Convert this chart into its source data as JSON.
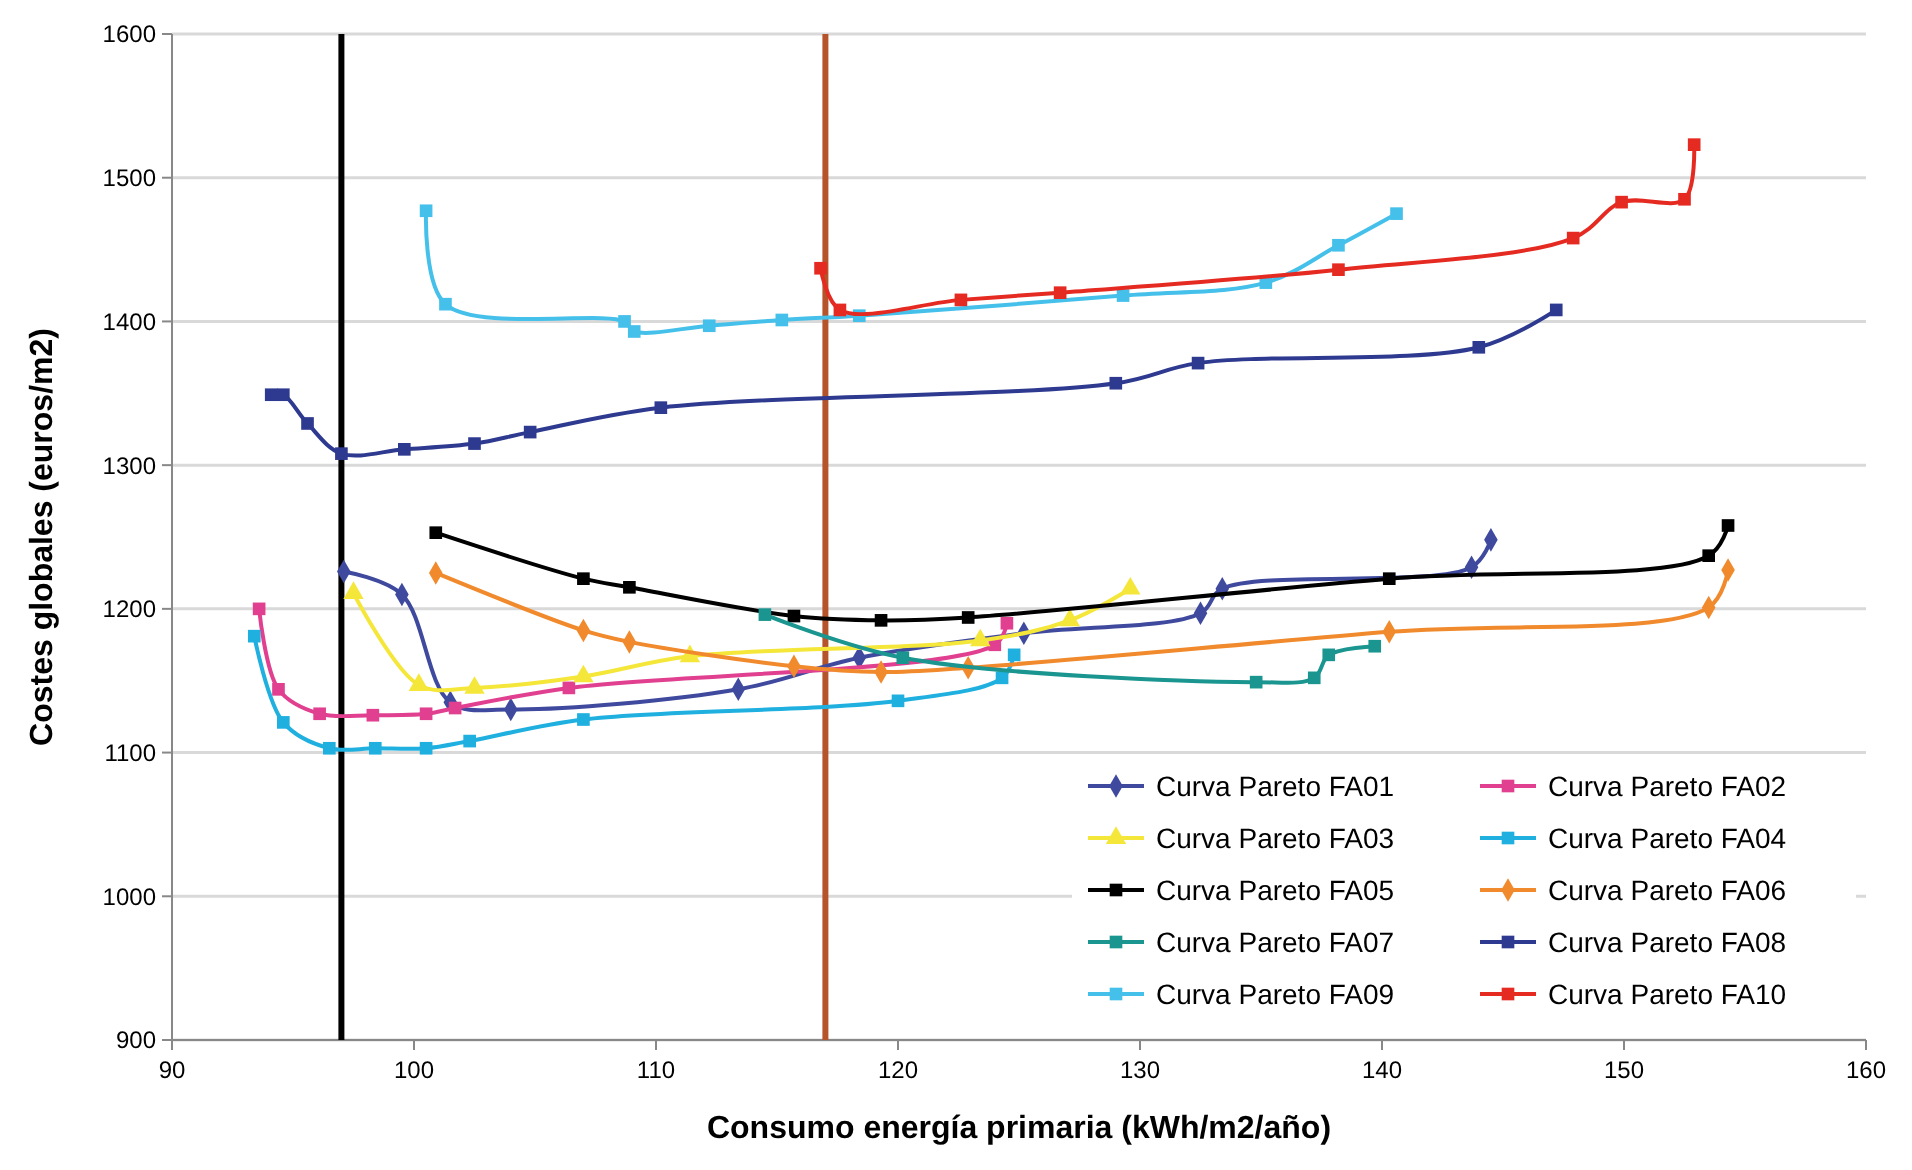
{
  "chart_data": {
    "type": "line",
    "xlabel": "Consumo energía primaria (kWh/m2/año)",
    "ylabel": "Costes globales (euros/m2)",
    "xlim": [
      90,
      160
    ],
    "xticks": [
      90,
      100,
      110,
      120,
      130,
      140,
      150,
      160
    ],
    "ylim": [
      900,
      1600
    ],
    "yticks": [
      900,
      1000,
      1100,
      1200,
      1300,
      1400,
      1500,
      1600
    ],
    "grid": "y",
    "legend": "bottom right",
    "line_style": "solid",
    "ref_lines": [
      {
        "axis": "x",
        "value": 97,
        "label": null,
        "color": "#000000"
      },
      {
        "axis": "x",
        "value": 117,
        "label": null,
        "color": "#b5532a"
      }
    ],
    "series": [
      {
        "name": "Curva Pareto FA01",
        "color": "#3f4a9e",
        "marker": "diamond",
        "x": [
          97.1,
          99.5,
          101.5,
          104,
          113.4,
          118.4,
          125.2,
          132.5,
          133.4,
          143.7,
          144.5
        ],
        "values": [
          1226,
          1210,
          1135,
          1130,
          1144,
          1166,
          1183,
          1197,
          1214,
          1229,
          1248
        ]
      },
      {
        "name": "Curva Pareto FA02",
        "color": "#e0408f",
        "marker": "square",
        "x": [
          93.6,
          94.4,
          96.1,
          98.3,
          100.5,
          101.7,
          106.4,
          124,
          124.5
        ],
        "values": [
          1200,
          1144,
          1127,
          1126,
          1127,
          1131,
          1145,
          1175,
          1190
        ]
      },
      {
        "name": "Curva Pareto FA03",
        "color": "#f5e63a",
        "marker": "triangle",
        "x": [
          97.5,
          100.2,
          102.5,
          107,
          111.4,
          123.4,
          127.1,
          129.6
        ],
        "values": [
          1211,
          1147,
          1145,
          1153,
          1167,
          1178,
          1192,
          1214
        ]
      },
      {
        "name": "Curva Pareto FA04",
        "color": "#1fb0e0",
        "marker": "square",
        "x": [
          93.4,
          94.6,
          96.5,
          98.4,
          100.5,
          102.3,
          107,
          120,
          124.3,
          124.8
        ],
        "values": [
          1181,
          1121,
          1103,
          1103,
          1103,
          1108,
          1123,
          1136,
          1152,
          1168
        ]
      },
      {
        "name": "Curva Pareto FA05",
        "color": "#000000",
        "marker": "square",
        "x": [
          100.9,
          107,
          108.9,
          115.7,
          119.3,
          122.9,
          140.3,
          153.5,
          154.3
        ],
        "values": [
          1253,
          1221,
          1215,
          1195,
          1192,
          1194,
          1221,
          1237,
          1258
        ]
      },
      {
        "name": "Curva Pareto FA06",
        "color": "#f08a2c",
        "marker": "diamond",
        "x": [
          100.9,
          107,
          108.9,
          115.7,
          119.3,
          122.9,
          140.3,
          153.5,
          154.3
        ],
        "values": [
          1225,
          1185,
          1177,
          1160,
          1156,
          1159,
          1184,
          1201,
          1227
        ]
      },
      {
        "name": "Curva Pareto FA07",
        "color": "#1a958f",
        "marker": "square",
        "x": [
          114.5,
          120.2,
          134.8,
          137.2,
          137.8,
          139.7
        ],
        "values": [
          1196,
          1166,
          1149,
          1152,
          1168,
          1174
        ]
      },
      {
        "name": "Curva Pareto FA08",
        "color": "#2e3a90",
        "marker": "square",
        "x": [
          94.1,
          94.6,
          95.6,
          97,
          99.6,
          102.5,
          104.8,
          110.2,
          129,
          132.4,
          144,
          147.2
        ],
        "values": [
          1349,
          1349,
          1329,
          1308,
          1311,
          1315,
          1323,
          1340,
          1357,
          1371,
          1382,
          1408
        ]
      },
      {
        "name": "Curva Pareto FA09",
        "color": "#45c0ea",
        "marker": "square",
        "x": [
          100.5,
          101.3,
          108.7,
          109.1,
          112.2,
          115.2,
          118.4,
          129.3,
          135.2,
          138.2,
          140.6
        ],
        "values": [
          1477,
          1412,
          1400,
          1393,
          1397,
          1401,
          1404,
          1418,
          1427,
          1453,
          1475
        ]
      },
      {
        "name": "Curva Pareto FA10",
        "color": "#e52a22",
        "marker": "square",
        "x": [
          116.8,
          117.6,
          122.6,
          126.7,
          138.2,
          147.9,
          149.9,
          152.5,
          152.9
        ],
        "values": [
          1437,
          1408,
          1415,
          1420,
          1436,
          1458,
          1483,
          1485,
          1523
        ]
      }
    ]
  }
}
